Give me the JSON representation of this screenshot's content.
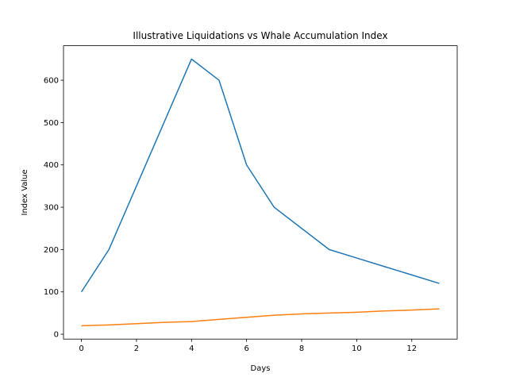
{
  "chart_data": {
    "type": "line",
    "title": "Illustrative Liquidations vs Whale Accumulation Index",
    "x_label": "Days",
    "y_label": "Index Value",
    "x": [
      0,
      1,
      2,
      3,
      4,
      5,
      6,
      7,
      8,
      9,
      10,
      11,
      12,
      13
    ],
    "series": [
      {
        "color": "#1f77b4",
        "values": [
          100,
          200,
          350,
          500,
          650,
          600,
          400,
          300,
          250,
          200,
          180,
          160,
          140,
          120
        ]
      },
      {
        "color": "#ff7f0e",
        "values": [
          20,
          22,
          25,
          28,
          30,
          35,
          40,
          45,
          48,
          50,
          52,
          55,
          57,
          60
        ]
      }
    ],
    "xlim": [
      -0.65,
      13.65
    ],
    "xticks": [
      0,
      2,
      4,
      6,
      8,
      10,
      12
    ],
    "ylim": [
      -11.5,
      681.5
    ],
    "yticks": [
      0,
      100,
      200,
      300,
      400,
      500,
      600
    ],
    "grid": false
  }
}
